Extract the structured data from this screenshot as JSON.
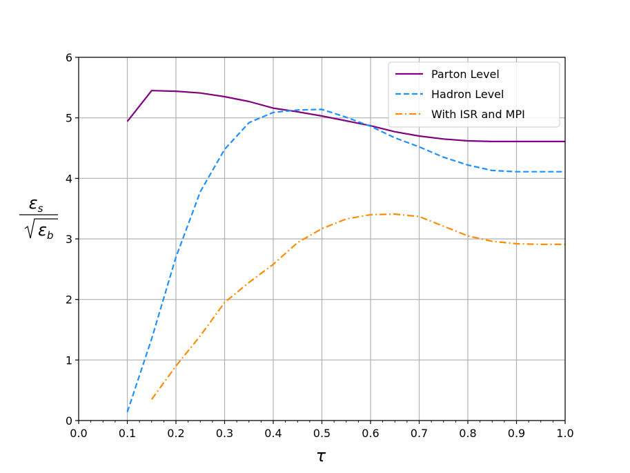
{
  "chart_data": {
    "type": "line",
    "title": "",
    "xlabel": "τ",
    "ylabel": {
      "numerator": "ε",
      "numerator_sub": "s",
      "denominator": "ε",
      "denominator_sub": "b"
    },
    "xlim": [
      0.0,
      1.0
    ],
    "ylim": [
      0,
      6
    ],
    "xticks": [
      "0.0",
      "0.1",
      "0.2",
      "0.3",
      "0.4",
      "0.5",
      "0.6",
      "0.7",
      "0.8",
      "0.9",
      "1.0"
    ],
    "xtick_values": [
      0.0,
      0.1,
      0.2,
      0.3,
      0.4,
      0.5,
      0.6,
      0.7,
      0.8,
      0.9,
      1.0
    ],
    "yticks": [
      "0",
      "1",
      "2",
      "3",
      "4",
      "5",
      "6"
    ],
    "ytick_values": [
      0,
      1,
      2,
      3,
      4,
      5,
      6
    ],
    "grid": true,
    "legend_position": "top-right",
    "series": [
      {
        "name": "Parton Level",
        "color": "#800080",
        "style": "solid",
        "x": [
          0.1,
          0.15,
          0.2,
          0.25,
          0.3,
          0.35,
          0.4,
          0.45,
          0.5,
          0.55,
          0.6,
          0.65,
          0.7,
          0.75,
          0.8,
          0.85,
          0.9,
          0.95,
          1.0
        ],
        "y": [
          4.94,
          5.45,
          5.44,
          5.41,
          5.35,
          5.27,
          5.16,
          5.1,
          5.03,
          4.95,
          4.87,
          4.77,
          4.7,
          4.65,
          4.62,
          4.61,
          4.61,
          4.61,
          4.61
        ]
      },
      {
        "name": "Hadron Level",
        "color": "#1E90FF",
        "style": "dashed",
        "x": [
          0.1,
          0.15,
          0.2,
          0.25,
          0.3,
          0.35,
          0.4,
          0.45,
          0.5,
          0.55,
          0.6,
          0.65,
          0.7,
          0.75,
          0.8,
          0.85,
          0.9,
          0.95,
          1.0
        ],
        "y": [
          0.14,
          1.35,
          2.7,
          3.78,
          4.48,
          4.92,
          5.09,
          5.13,
          5.14,
          5.01,
          4.86,
          4.67,
          4.52,
          4.35,
          4.22,
          4.13,
          4.11,
          4.11,
          4.11
        ]
      },
      {
        "name": "With ISR and MPI",
        "color": "#FF8C00",
        "style": "dashdot",
        "x": [
          0.15,
          0.2,
          0.25,
          0.3,
          0.35,
          0.4,
          0.45,
          0.5,
          0.55,
          0.6,
          0.65,
          0.7,
          0.75,
          0.8,
          0.85,
          0.9,
          0.95,
          1.0
        ],
        "y": [
          0.35,
          0.9,
          1.4,
          1.95,
          2.28,
          2.58,
          2.94,
          3.17,
          3.33,
          3.4,
          3.41,
          3.37,
          3.21,
          3.05,
          2.96,
          2.92,
          2.91,
          2.91
        ]
      }
    ]
  }
}
